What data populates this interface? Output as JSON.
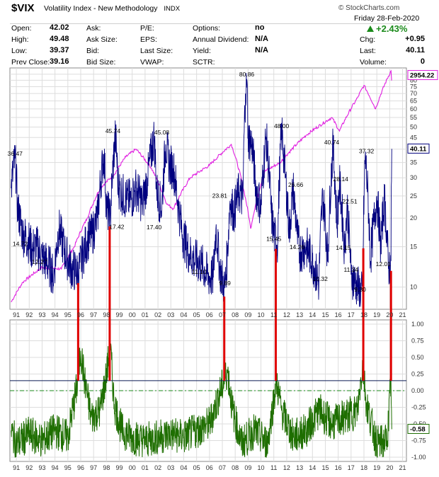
{
  "header": {
    "symbol": "$VIX",
    "description": "Volatility Index - New Methodology",
    "exchange": "INDX",
    "brand": "© StockCharts.com",
    "date": "Friday 28-Feb-2020",
    "pct_change": "+2.43%",
    "fields": [
      {
        "label": "Open:",
        "value": "42.02"
      },
      {
        "label": "High:",
        "value": "49.48"
      },
      {
        "label": "Low:",
        "value": "39.37"
      },
      {
        "label": "Prev Close:",
        "value": "39.16"
      },
      {
        "label": "Ask:",
        "value": ""
      },
      {
        "label": "Ask Size:",
        "value": ""
      },
      {
        "label": "Bid:",
        "value": ""
      },
      {
        "label": "Bid Size:",
        "value": ""
      },
      {
        "label": "P/E:",
        "value": ""
      },
      {
        "label": "EPS:",
        "value": ""
      },
      {
        "label": "Last Size:",
        "value": ""
      },
      {
        "label": "VWAP:",
        "value": ""
      },
      {
        "label": "Options:",
        "value": "no"
      },
      {
        "label": "Annual Dividend:",
        "value": "N/A"
      },
      {
        "label": "Yield:",
        "value": "N/A"
      },
      {
        "label": "SCTR:",
        "value": ""
      },
      {
        "label": "Chg:",
        "value": "+0.95"
      },
      {
        "label": "Last:",
        "value": "40.11"
      },
      {
        "label": "Volume:",
        "value": "0"
      }
    ]
  },
  "colors": {
    "vix": "#00007f",
    "spx": "#e01ee0",
    "correlation": "#1e6e00",
    "signal": "#e00000",
    "zero_line": "#1a8a1a",
    "threshold_line": "#0a1a55",
    "grid": "#dddddd"
  },
  "chart_data": [
    {
      "type": "line",
      "scale": "log",
      "series": [
        {
          "name": "$VIX",
          "last_label": "40.11"
        },
        {
          "name": "$SPX",
          "last_label": "2954.22"
        }
      ],
      "x_ticks": [
        "91",
        "92",
        "93",
        "94",
        "95",
        "96",
        "97",
        "98",
        "99",
        "00",
        "01",
        "02",
        "03",
        "04",
        "05",
        "06",
        "07",
        "08",
        "09",
        "10",
        "11",
        "12",
        "13",
        "14",
        "15",
        "16",
        "17",
        "18",
        "19",
        "20",
        "21"
      ],
      "y_ticks": [
        "85",
        "80",
        "75",
        "70",
        "65",
        "60",
        "55",
        "50",
        "45",
        "40",
        "35",
        "30",
        "25",
        "20",
        "15",
        "10"
      ],
      "ylim": [
        8,
        88
      ],
      "x_range": [
        1990.5,
        2021.3
      ],
      "vix_keypoints": [
        [
          1990.6,
          27
        ],
        [
          1990.9,
          36.47
        ],
        [
          1991.1,
          22
        ],
        [
          1991.5,
          17
        ],
        [
          1991.9,
          16
        ],
        [
          1992.2,
          14.72
        ],
        [
          1992.6,
          15
        ],
        [
          1993.0,
          13.5
        ],
        [
          1993.6,
          12.27
        ],
        [
          1993.9,
          11
        ],
        [
          1994.3,
          18
        ],
        [
          1994.8,
          14
        ],
        [
          1995.3,
          12
        ],
        [
          1995.8,
          11.5
        ],
        [
          1996.2,
          14
        ],
        [
          1996.5,
          16
        ],
        [
          1996.9,
          17
        ],
        [
          1997.3,
          20
        ],
        [
          1997.8,
          38
        ],
        [
          1998.0,
          22
        ],
        [
          1998.3,
          20
        ],
        [
          1998.7,
          45.74
        ],
        [
          1998.9,
          28
        ],
        [
          1999.1,
          26
        ],
        [
          1999.6,
          24
        ],
        [
          1999.9,
          24
        ],
        [
          2000.3,
          27
        ],
        [
          2000.8,
          23
        ],
        [
          2001.2,
          30
        ],
        [
          2001.7,
          45.08
        ],
        [
          2001.9,
          26
        ],
        [
          2002.3,
          22
        ],
        [
          2002.6,
          42
        ],
        [
          2002.9,
          34
        ],
        [
          2003.2,
          33
        ],
        [
          2003.6,
          22
        ],
        [
          2003.9,
          17
        ],
        [
          2004.4,
          14
        ],
        [
          2004.9,
          13
        ],
        [
          2005.4,
          12.5
        ],
        [
          2005.9,
          11.1
        ],
        [
          2006.3,
          11
        ],
        [
          2006.5,
          18
        ],
        [
          2006.8,
          12
        ],
        [
          2007.1,
          10.2
        ],
        [
          2007.2,
          9.89
        ],
        [
          2007.4,
          14
        ],
        [
          2007.6,
          23.81
        ],
        [
          2007.9,
          21
        ],
        [
          2008.3,
          26
        ],
        [
          2008.6,
          24
        ],
        [
          2008.8,
          70
        ],
        [
          2008.9,
          80.86
        ],
        [
          2009.0,
          45
        ],
        [
          2009.3,
          42
        ],
        [
          2009.6,
          27
        ],
        [
          2010.0,
          22
        ],
        [
          2010.4,
          45
        ],
        [
          2010.8,
          21
        ],
        [
          2011.0,
          17
        ],
        [
          2011.3,
          15.45
        ],
        [
          2011.6,
          48.0
        ],
        [
          2011.9,
          30
        ],
        [
          2012.2,
          17
        ],
        [
          2012.5,
          26.66
        ],
        [
          2012.8,
          17
        ],
        [
          2013.0,
          14.26
        ],
        [
          2013.5,
          15
        ],
        [
          2014.0,
          13
        ],
        [
          2014.5,
          10.32
        ],
        [
          2014.8,
          25
        ],
        [
          2015.2,
          13
        ],
        [
          2015.6,
          40.74
        ],
        [
          2015.9,
          18
        ],
        [
          2016.1,
          28.14
        ],
        [
          2016.5,
          14.15
        ],
        [
          2016.7,
          22.51
        ],
        [
          2017.0,
          11.34
        ],
        [
          2017.5,
          10
        ],
        [
          2017.9,
          9.3
        ],
        [
          2018.1,
          37.32
        ],
        [
          2018.5,
          13
        ],
        [
          2018.9,
          22
        ],
        [
          2019.0,
          25
        ],
        [
          2019.3,
          15
        ],
        [
          2019.6,
          24
        ],
        [
          2019.9,
          12.01
        ],
        [
          2020.1,
          13
        ],
        [
          2020.16,
          40.11
        ]
      ],
      "spx_keypoints": [
        [
          1990.6,
          8.6
        ],
        [
          1991.5,
          10.5
        ],
        [
          1993,
          12.2
        ],
        [
          1994.5,
          12
        ],
        [
          1995.5,
          15
        ],
        [
          1996.5,
          20
        ],
        [
          1997.5,
          27
        ],
        [
          1998.6,
          31
        ],
        [
          1999.5,
          37
        ],
        [
          2000.3,
          40
        ],
        [
          2001.5,
          33
        ],
        [
          2002.7,
          23
        ],
        [
          2003.2,
          22
        ],
        [
          2004.5,
          30
        ],
        [
          2006,
          34
        ],
        [
          2007.7,
          42
        ],
        [
          2009.2,
          18
        ],
        [
          2010.3,
          32
        ],
        [
          2011.5,
          35
        ],
        [
          2013.5,
          46
        ],
        [
          2015.5,
          55
        ],
        [
          2016.1,
          48
        ],
        [
          2017.5,
          67
        ],
        [
          2018.0,
          76
        ],
        [
          2018.9,
          60
        ],
        [
          2020.1,
          88
        ],
        [
          2020.16,
          80
        ]
      ],
      "labels": [
        {
          "text": "36.47",
          "x": 1990.9,
          "v": 36.47
        },
        {
          "text": "14.72",
          "x": 1991.3,
          "v": 14.72
        },
        {
          "text": "12.27",
          "x": 1992.8,
          "v": 12.27
        },
        {
          "text": "45.74",
          "x": 1998.5,
          "v": 45.74
        },
        {
          "text": "17.42",
          "x": 1998.8,
          "v": 17.42
        },
        {
          "text": "45.08",
          "x": 2002.3,
          "v": 45.08
        },
        {
          "text": "17.40",
          "x": 2001.7,
          "v": 17.4
        },
        {
          "text": "11.10",
          "x": 2005.2,
          "v": 11.1
        },
        {
          "text": "23.81",
          "x": 2006.8,
          "v": 23.81
        },
        {
          "text": "9.89",
          "x": 2007.2,
          "v": 9.89
        },
        {
          "text": "80.86",
          "x": 2008.9,
          "v": 80.86
        },
        {
          "text": "48.00",
          "x": 2011.6,
          "v": 48.0
        },
        {
          "text": "15.45",
          "x": 2011.0,
          "v": 15.45
        },
        {
          "text": "26.66",
          "x": 2012.7,
          "v": 26.66
        },
        {
          "text": "14.26",
          "x": 2012.8,
          "v": 14.26
        },
        {
          "text": "10.32",
          "x": 2014.6,
          "v": 10.32
        },
        {
          "text": "40.74",
          "x": 2015.5,
          "v": 40.74
        },
        {
          "text": "28.14",
          "x": 2016.2,
          "v": 28.14
        },
        {
          "text": "14.15",
          "x": 2016.4,
          "v": 14.15
        },
        {
          "text": "22.51",
          "x": 2016.9,
          "v": 22.51
        },
        {
          "text": "11.34",
          "x": 2017.0,
          "v": 11.34
        },
        {
          "text": "9.30",
          "x": 2017.7,
          "v": 9.3
        },
        {
          "text": "37.32",
          "x": 2018.2,
          "v": 37.32
        },
        {
          "text": "12.01",
          "x": 2019.5,
          "v": 12.01
        }
      ]
    },
    {
      "type": "line",
      "series": [
        {
          "name": "Correlation",
          "last_label": "-0.58"
        }
      ],
      "x_ticks": [
        "91",
        "92",
        "93",
        "94",
        "95",
        "96",
        "97",
        "98",
        "99",
        "00",
        "01",
        "02",
        "03",
        "04",
        "05",
        "06",
        "07",
        "08",
        "09",
        "10",
        "11",
        "12",
        "13",
        "14",
        "15",
        "16",
        "17",
        "18",
        "19",
        "20",
        "21"
      ],
      "y_ticks": [
        "1.00",
        "0.75",
        "0.50",
        "0.25",
        "0.00",
        "-0.25",
        "-0.50",
        "-0.75",
        "-1.00"
      ],
      "ylim": [
        -1,
        1
      ],
      "threshold": 0.15,
      "keypoints": [
        [
          1990.6,
          -0.6
        ],
        [
          1991,
          -0.8
        ],
        [
          1992,
          -0.65
        ],
        [
          1993,
          -0.75
        ],
        [
          1994,
          -0.6
        ],
        [
          1995,
          -0.7
        ],
        [
          1995.7,
          0.05
        ],
        [
          1996.0,
          0.6
        ],
        [
          1996.3,
          0.15
        ],
        [
          1996.8,
          -0.4
        ],
        [
          1997.5,
          -0.3
        ],
        [
          1998.0,
          0.25
        ],
        [
          1998.3,
          0.65
        ],
        [
          1998.6,
          -0.2
        ],
        [
          1999.2,
          -0.6
        ],
        [
          2000,
          -0.7
        ],
        [
          2001,
          -0.75
        ],
        [
          2002,
          -0.7
        ],
        [
          2003,
          -0.65
        ],
        [
          2004,
          -0.7
        ],
        [
          2005,
          -0.6
        ],
        [
          2006,
          -0.5
        ],
        [
          2007.4,
          0.3
        ],
        [
          2007.8,
          -0.3
        ],
        [
          2008.5,
          -0.8
        ],
        [
          2009.5,
          -0.6
        ],
        [
          2010.5,
          -0.8
        ],
        [
          2011.2,
          0.15
        ],
        [
          2011.6,
          -0.3
        ],
        [
          2012.5,
          -0.7
        ],
        [
          2013.5,
          -0.6
        ],
        [
          2014.5,
          -0.3
        ],
        [
          2015.5,
          -0.5
        ],
        [
          2016.5,
          -0.4
        ],
        [
          2017.5,
          -0.3
        ],
        [
          2017.9,
          0.4
        ],
        [
          2018.2,
          -0.2
        ],
        [
          2019,
          -0.8
        ],
        [
          2019.8,
          -0.75
        ],
        [
          2020.1,
          0.15
        ],
        [
          2020.16,
          -0.58
        ]
      ],
      "signals": [
        1995.8,
        1998.25,
        2007.15,
        2011.15,
        2017.95,
        2020.1
      ]
    }
  ]
}
